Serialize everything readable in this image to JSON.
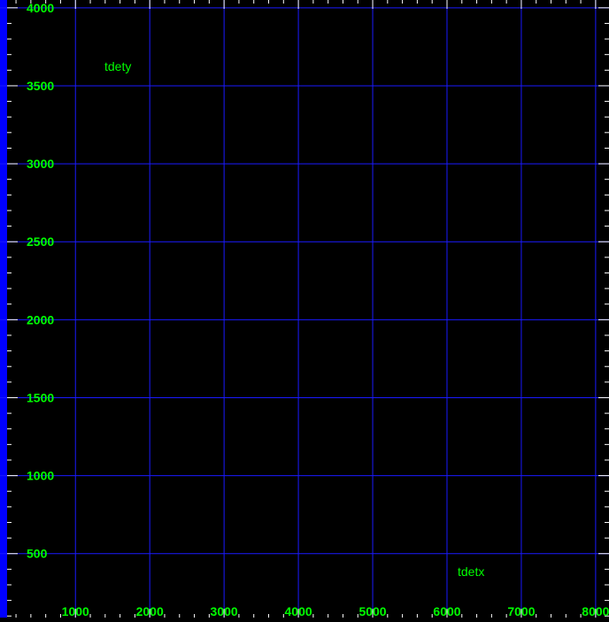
{
  "chart_data": {
    "type": "scatter",
    "title": "",
    "xlabel": "tdetx",
    "ylabel": "tdety",
    "xlim": [
      80,
      8180
    ],
    "ylim": [
      90,
      4050
    ],
    "x_ticks": [
      {
        "value": 1000,
        "label": "1000"
      },
      {
        "value": 2000,
        "label": "2000"
      },
      {
        "value": 3000,
        "label": "3000"
      },
      {
        "value": 4000,
        "label": "4000"
      },
      {
        "value": 5000,
        "label": "5000"
      },
      {
        "value": 6000,
        "label": "6000"
      },
      {
        "value": 7000,
        "label": "7000"
      },
      {
        "value": 8000,
        "label": "8000"
      }
    ],
    "y_ticks": [
      {
        "value": 500,
        "label": "500"
      },
      {
        "value": 1000,
        "label": "1000"
      },
      {
        "value": 1500,
        "label": "1500"
      },
      {
        "value": 2000,
        "label": "2000"
      },
      {
        "value": 2500,
        "label": "2500"
      },
      {
        "value": 3000,
        "label": "3000"
      },
      {
        "value": 3500,
        "label": "3500"
      },
      {
        "value": 4000,
        "label": "4000"
      }
    ],
    "x_minor_step": 200,
    "y_minor_step": 100,
    "grid": true,
    "series": [],
    "colors": {
      "background": "#000000",
      "frame": "#0000ff",
      "grid": "#1a1aff",
      "text": "#00ff00",
      "ticks": "#ffffff"
    }
  }
}
